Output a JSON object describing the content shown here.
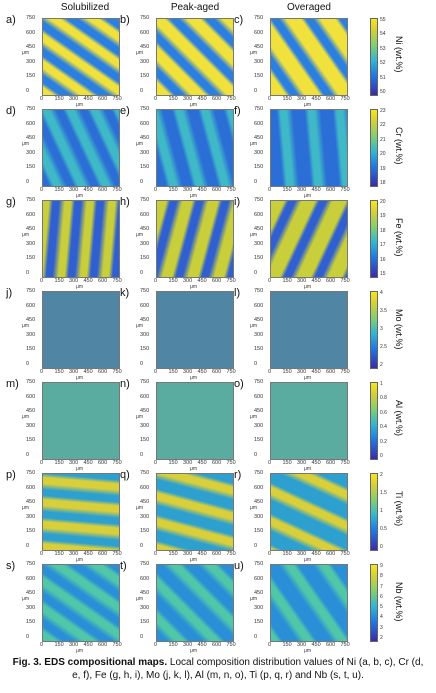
{
  "columns": [
    "Solubilized",
    "Peak-aged",
    "Overaged"
  ],
  "unit_label": "μm",
  "x_ticks": [
    "0",
    "150",
    "300",
    "450",
    "600",
    "750"
  ],
  "y_ticks": [
    "750",
    "600",
    "450",
    "300",
    "150",
    "0"
  ],
  "rows": [
    {
      "labels": [
        "a)",
        "b)",
        "c)"
      ],
      "element": "Ni (wt.%)",
      "cbar_ticks": [
        "55",
        "54",
        "53",
        "52",
        "51",
        "50"
      ],
      "pattern": "diag",
      "base": "#f0e13c",
      "alt": "#2a7fe0"
    },
    {
      "labels": [
        "d)",
        "e)",
        "f)"
      ],
      "element": "Cr (wt.%)",
      "cbar_ticks": [
        "23",
        "22",
        "21",
        "20",
        "19",
        "18"
      ],
      "pattern": "diag",
      "base": "#2b6fd6",
      "alt": "#3fb8c7"
    },
    {
      "labels": [
        "g)",
        "h)",
        "i)"
      ],
      "element": "Fe (wt.%)",
      "cbar_ticks": [
        "20",
        "19",
        "18",
        "17",
        "16",
        "15"
      ],
      "pattern": "diag",
      "base": "#c9cf3a",
      "alt": "#2f5fd0"
    },
    {
      "labels": [
        "j)",
        "k)",
        "l)"
      ],
      "element": "Mo (wt.%)",
      "cbar_ticks": [
        "4",
        "3.5",
        "3",
        "2.5",
        "2"
      ],
      "pattern": "noise",
      "base": "#6fc280",
      "alt": "#3049c8"
    },
    {
      "labels": [
        "m)",
        "n)",
        "o)"
      ],
      "element": "Al (wt.%)",
      "cbar_ticks": [
        "1",
        "0.8",
        "0.6",
        "0.4",
        "0.2",
        "0"
      ],
      "pattern": "noise",
      "base": "#86c86a",
      "alt": "#2f8fd8"
    },
    {
      "labels": [
        "p)",
        "q)",
        "r)"
      ],
      "element": "Ti (wt.%)",
      "cbar_ticks": [
        "2",
        "1.5",
        "1",
        "0.5",
        "0"
      ],
      "pattern": "diag",
      "base": "#2ea0d0",
      "alt": "#d8cf3a"
    },
    {
      "labels": [
        "s)",
        "t)",
        "u)"
      ],
      "element": "Nb (wt.%)",
      "cbar_ticks": [
        "9",
        "8",
        "7",
        "6",
        "5",
        "4",
        "3",
        "2"
      ],
      "pattern": "diag",
      "base": "#2b8fd8",
      "alt": "#4fc7a8"
    }
  ],
  "caption": {
    "bold": "Fig. 3. EDS compositional maps.",
    "text": "Local composition distribution values of Ni (a, b, c), Cr (d, e, f), Fe (g, h, i), Mo (j, k, l), Al (m, n, o), Ti (p, q, r) and Nb (s, t, u)."
  }
}
